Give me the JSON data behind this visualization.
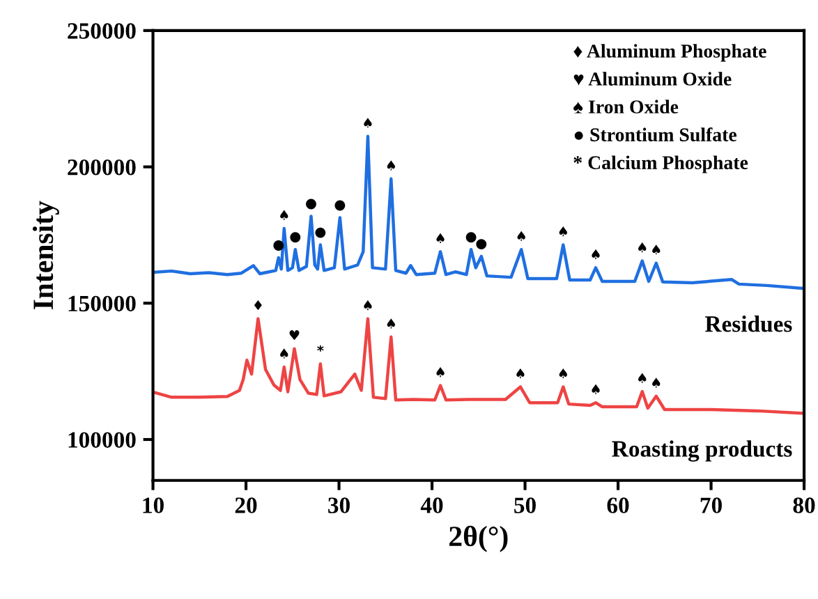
{
  "chart_data": {
    "type": "line",
    "xlabel": "2θ(°)",
    "ylabel": "Intensity",
    "xlim": [
      10,
      80
    ],
    "ylim": [
      85000,
      250000
    ],
    "xticks": [
      10,
      20,
      30,
      40,
      50,
      60,
      70,
      80
    ],
    "yticks": [
      100000,
      150000,
      200000,
      250000
    ],
    "grid": false,
    "legend": false,
    "series": [
      {
        "name": "Residues",
        "color": "#1f6fe0",
        "x": [
          10,
          12,
          14,
          16,
          18,
          19.5,
          20.8,
          21.5,
          22.5,
          23.2,
          23.5,
          23.8,
          24.1,
          24.5,
          25.0,
          25.3,
          25.7,
          26.5,
          27.0,
          27.4,
          27.7,
          28.0,
          28.4,
          29.5,
          30.1,
          30.6,
          32.0,
          32.6,
          33.1,
          33.6,
          35.0,
          35.6,
          36.1,
          37.2,
          37.7,
          38.3,
          40.3,
          40.9,
          41.5,
          42.5,
          43.7,
          44.2,
          44.7,
          45.3,
          45.9,
          48.5,
          49.6,
          50.3,
          53.4,
          54.1,
          54.8,
          57.0,
          57.6,
          58.3,
          61.8,
          62.6,
          63.3,
          64.1,
          64.8,
          68,
          72.2,
          73,
          76,
          80
        ],
        "values": [
          161300,
          161800,
          160800,
          161200,
          160500,
          161000,
          163800,
          160800,
          161500,
          162000,
          166700,
          162500,
          177400,
          162000,
          163000,
          169700,
          162000,
          163500,
          181900,
          164000,
          162500,
          171400,
          162000,
          163000,
          181400,
          162500,
          164000,
          168900,
          211200,
          163000,
          162500,
          195600,
          162000,
          161000,
          163800,
          160500,
          161000,
          168900,
          160500,
          161500,
          160500,
          169700,
          163000,
          167200,
          160000,
          159500,
          169700,
          159000,
          159000,
          171400,
          158500,
          158500,
          163000,
          158000,
          158000,
          165500,
          158000,
          164700,
          157800,
          157500,
          158700,
          157000,
          156500,
          155400
        ]
      },
      {
        "name": "Roasting products",
        "color": "#ee4444",
        "x": [
          10,
          12,
          15,
          18,
          19.3,
          19.7,
          20.1,
          20.6,
          21.3,
          22.1,
          23.0,
          23.7,
          24.1,
          24.5,
          25.2,
          25.8,
          26.7,
          27.6,
          28.0,
          28.4,
          30.2,
          31.7,
          32.4,
          33.1,
          33.7,
          35.0,
          35.6,
          36.1,
          38,
          40.3,
          40.9,
          41.5,
          43.9,
          47.9,
          49.5,
          50.5,
          53.5,
          54.1,
          54.7,
          57.0,
          57.6,
          58.3,
          62.0,
          62.6,
          63.2,
          64.1,
          65,
          70,
          75,
          80
        ],
        "values": [
          117400,
          115500,
          115500,
          115800,
          118000,
          122000,
          129100,
          124000,
          144300,
          125700,
          120000,
          118000,
          126600,
          117500,
          133300,
          122000,
          117000,
          116500,
          127700,
          116000,
          117500,
          124000,
          118000,
          144300,
          115500,
          115000,
          137600,
          114500,
          114700,
          114500,
          119800,
          114500,
          114700,
          114700,
          119300,
          113500,
          113500,
          119300,
          113000,
          112500,
          113500,
          112000,
          112000,
          117600,
          111500,
          115900,
          111000,
          111000,
          110500,
          109600
        ]
      }
    ],
    "annotations": [
      "♦ Aluminum Phosphate",
      "♥ Aluminum Oxide",
      "♠ Iron Oxide",
      "● Strontium Sulfate",
      "* Calcium Phosphate",
      {
        "text": "●",
        "x": 23.5,
        "y": 166700
      },
      {
        "text": "♠",
        "x": 24.1,
        "y": 177400
      },
      {
        "text": "●",
        "x": 25.3,
        "y": 169700
      },
      {
        "text": "●",
        "x": 27.0,
        "y": 181900
      },
      {
        "text": "●",
        "x": 28.0,
        "y": 171400
      },
      {
        "text": "●",
        "x": 30.1,
        "y": 181400
      },
      {
        "text": "♠",
        "x": 33.1,
        "y": 211200
      },
      {
        "text": "♠",
        "x": 35.6,
        "y": 195600
      },
      {
        "text": "♠",
        "x": 40.9,
        "y": 168900
      },
      {
        "text": "●",
        "x": 44.2,
        "y": 169700
      },
      {
        "text": "●",
        "x": 45.3,
        "y": 167200
      },
      {
        "text": "♠",
        "x": 49.6,
        "y": 169700
      },
      {
        "text": "♠",
        "x": 54.1,
        "y": 171400
      },
      {
        "text": "♠",
        "x": 57.6,
        "y": 163000
      },
      {
        "text": "♠",
        "x": 62.6,
        "y": 165500
      },
      {
        "text": "♠",
        "x": 64.1,
        "y": 164700
      },
      {
        "text": "♦",
        "x": 21.3,
        "y": 144300
      },
      {
        "text": "♠",
        "x": 24.1,
        "y": 126600
      },
      {
        "text": "♥",
        "x": 25.2,
        "y": 133300
      },
      {
        "text": "*",
        "x": 28.0,
        "y": 127700
      },
      {
        "text": "♠",
        "x": 33.1,
        "y": 144300
      },
      {
        "text": "♠",
        "x": 35.6,
        "y": 137600
      },
      {
        "text": "♠",
        "x": 40.9,
        "y": 119800
      },
      {
        "text": "♠",
        "x": 49.5,
        "y": 119300
      },
      {
        "text": "♠",
        "x": 54.1,
        "y": 119300
      },
      {
        "text": "♠",
        "x": 57.6,
        "y": 113500
      },
      {
        "text": "♠",
        "x": 62.6,
        "y": 117600
      },
      {
        "text": "♠",
        "x": 64.1,
        "y": 115900
      }
    ]
  }
}
